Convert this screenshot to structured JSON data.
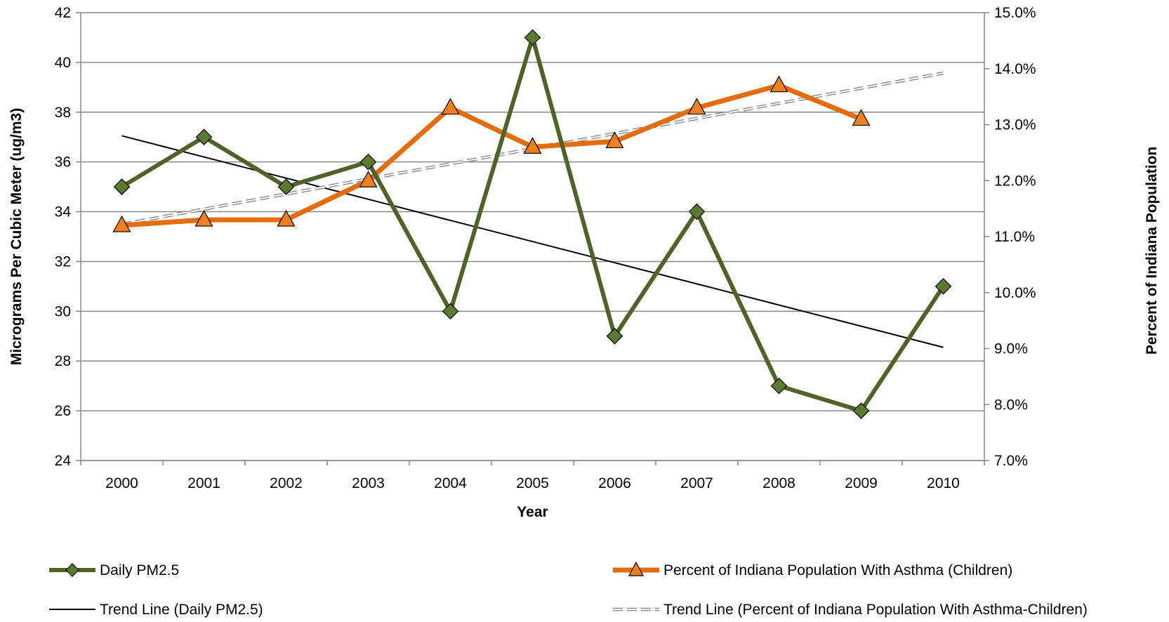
{
  "chart_data": {
    "type": "line",
    "x": [
      "2000",
      "2001",
      "2002",
      "2003",
      "2004",
      "2005",
      "2006",
      "2007",
      "2008",
      "2009",
      "2010"
    ],
    "xlabel": "Year",
    "ylabel_left": "Micrograms Per Cubic Meter (ug/m3)",
    "ylabel_right": "Percent of Indiana Population",
    "ylim_left": [
      24,
      42
    ],
    "ylim_right": [
      7.0,
      15.0
    ],
    "yticks_left": [
      "24",
      "26",
      "28",
      "30",
      "32",
      "34",
      "36",
      "38",
      "40",
      "42"
    ],
    "yticks_right": [
      "7.0%",
      "8.0%",
      "9.0%",
      "10.0%",
      "11.0%",
      "12.0%",
      "13.0%",
      "14.0%",
      "15.0%"
    ],
    "grid": true,
    "legend_position": "bottom",
    "series": [
      {
        "name": "Daily PM2.5",
        "axis": "left",
        "color": "#4f6228",
        "marker": "diamond",
        "marker_fill": "#5b7a2e",
        "values": [
          35,
          37,
          35,
          36,
          30,
          41,
          29,
          34,
          27,
          26,
          31
        ]
      },
      {
        "name": "Percent of Indiana Population With Asthma (Children)",
        "axis": "right",
        "color": "#e46c0a",
        "marker": "triangle",
        "marker_fill": "#f0801e",
        "values": [
          11.2,
          11.3,
          11.3,
          12.0,
          13.3,
          12.6,
          12.7,
          13.3,
          13.7,
          13.1,
          null
        ]
      },
      {
        "name": "Trend Line (Daily PM2.5)",
        "axis": "left",
        "color": "#000000",
        "style": "solid-thin",
        "values": [
          37.05,
          36.2,
          35.35,
          34.5,
          33.65,
          32.8,
          31.95,
          31.1,
          30.25,
          29.4,
          28.55
        ]
      },
      {
        "name": "Trend Line (Percent of Indiana Population With Asthma-Children)",
        "axis": "right",
        "color": "#808080",
        "style": "dashed-double",
        "values": [
          11.22,
          11.49,
          11.76,
          12.03,
          12.3,
          12.57,
          12.84,
          13.11,
          13.38,
          13.65,
          13.92
        ]
      }
    ]
  }
}
